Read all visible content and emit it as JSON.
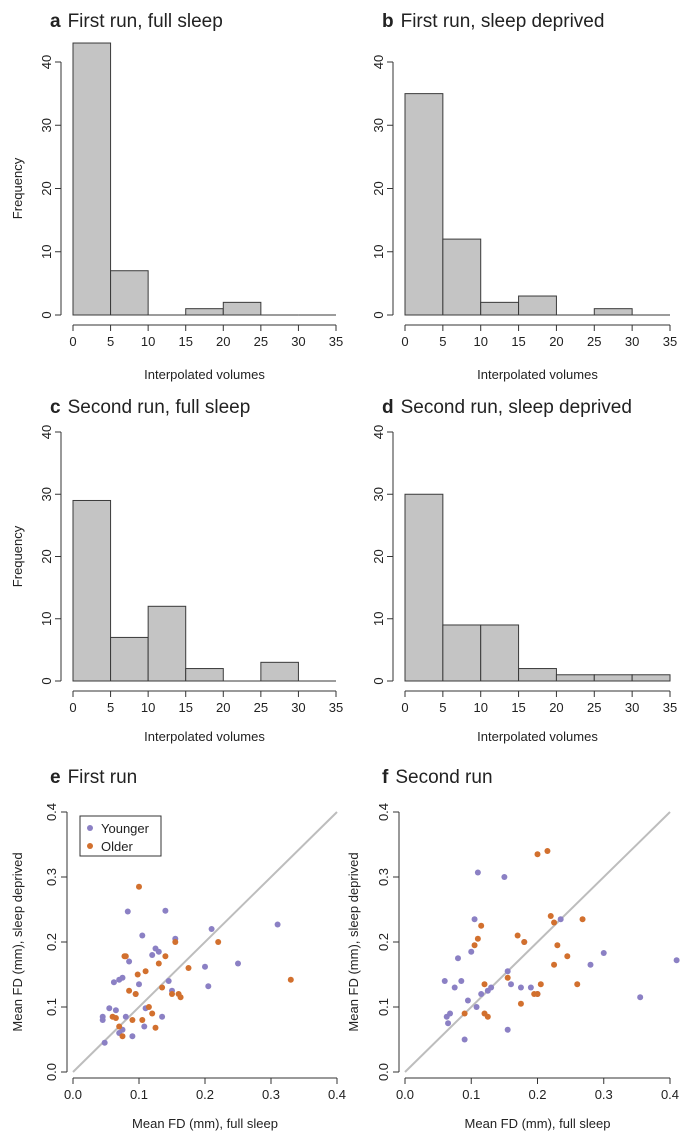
{
  "colors": {
    "bar_fill": "#c4c4c4",
    "bar_stroke": "#3a3a3a",
    "axis": "#333333",
    "identity_line": "#bdbdbd",
    "younger": "#8b80c4",
    "older": "#d2702e"
  },
  "chart_data": [
    {
      "type": "bar",
      "letter": "a",
      "title": "First run, full sleep",
      "xlabel": "Interpolated volumes",
      "ylabel": "Frequency",
      "bin_edges": [
        0,
        5,
        10,
        15,
        20,
        25,
        30,
        35
      ],
      "values": [
        43,
        7,
        0,
        1,
        2,
        0,
        0
      ],
      "xlim": [
        0,
        35
      ],
      "ylim": [
        0,
        40
      ],
      "xticks": [
        "0",
        "5",
        "10",
        "15",
        "20",
        "25",
        "30",
        "35"
      ],
      "yticks": [
        "0",
        "10",
        "20",
        "30",
        "40"
      ],
      "grid": false
    },
    {
      "type": "bar",
      "letter": "b",
      "title": "First run, sleep deprived",
      "xlabel": "Interpolated volumes",
      "ylabel": "",
      "bin_edges": [
        0,
        5,
        10,
        15,
        20,
        25,
        30,
        35
      ],
      "values": [
        35,
        12,
        2,
        3,
        0,
        1,
        0
      ],
      "xlim": [
        0,
        35
      ],
      "ylim": [
        0,
        40
      ],
      "xticks": [
        "0",
        "5",
        "10",
        "15",
        "20",
        "25",
        "30",
        "35"
      ],
      "yticks": [
        "0",
        "10",
        "20",
        "30",
        "40"
      ],
      "grid": false
    },
    {
      "type": "bar",
      "letter": "c",
      "title": "Second run, full sleep",
      "xlabel": "Interpolated volumes",
      "ylabel": "Frequency",
      "bin_edges": [
        0,
        5,
        10,
        15,
        20,
        25,
        30,
        35
      ],
      "values": [
        29,
        7,
        12,
        2,
        0,
        3,
        0
      ],
      "xlim": [
        0,
        35
      ],
      "ylim": [
        0,
        40
      ],
      "xticks": [
        "0",
        "5",
        "10",
        "15",
        "20",
        "25",
        "30",
        "35"
      ],
      "yticks": [
        "0",
        "10",
        "20",
        "30",
        "40"
      ],
      "grid": false
    },
    {
      "type": "bar",
      "letter": "d",
      "title": "Second run, sleep deprived",
      "xlabel": "Interpolated volumes",
      "ylabel": "",
      "bin_edges": [
        0,
        5,
        10,
        15,
        20,
        25,
        30,
        35
      ],
      "values": [
        30,
        9,
        9,
        2,
        1,
        1,
        1
      ],
      "xlim": [
        0,
        35
      ],
      "ylim": [
        0,
        40
      ],
      "xticks": [
        "0",
        "5",
        "10",
        "15",
        "20",
        "25",
        "30",
        "35"
      ],
      "yticks": [
        "0",
        "10",
        "20",
        "30",
        "40"
      ],
      "grid": false
    },
    {
      "type": "scatter",
      "letter": "e",
      "title": "First run",
      "xlabel": "Mean FD (mm), full sleep",
      "ylabel": "Mean FD (mm), sleep deprived",
      "xlim": [
        0,
        0.4
      ],
      "ylim": [
        0,
        0.4
      ],
      "xticks": [
        "0.0",
        "0.1",
        "0.2",
        "0.3",
        "0.4"
      ],
      "yticks": [
        "0.0",
        "0.1",
        "0.2",
        "0.3",
        "0.4"
      ],
      "identity_line": true,
      "legend": {
        "position": "top-left",
        "entries": [
          "Younger",
          "Older"
        ]
      },
      "grid": false,
      "series": [
        {
          "name": "Younger",
          "points": [
            [
              0.045,
              0.085
            ],
            [
              0.045,
              0.08
            ],
            [
              0.048,
              0.045
            ],
            [
              0.055,
              0.098
            ],
            [
              0.062,
              0.138
            ],
            [
              0.065,
              0.095
            ],
            [
              0.07,
              0.06
            ],
            [
              0.075,
              0.065
            ],
            [
              0.07,
              0.142
            ],
            [
              0.075,
              0.145
            ],
            [
              0.08,
              0.085
            ],
            [
              0.083,
              0.247
            ],
            [
              0.085,
              0.17
            ],
            [
              0.09,
              0.055
            ],
            [
              0.095,
              0.12
            ],
            [
              0.1,
              0.135
            ],
            [
              0.105,
              0.21
            ],
            [
              0.108,
              0.07
            ],
            [
              0.11,
              0.098
            ],
            [
              0.12,
              0.18
            ],
            [
              0.125,
              0.19
            ],
            [
              0.13,
              0.185
            ],
            [
              0.135,
              0.085
            ],
            [
              0.14,
              0.248
            ],
            [
              0.145,
              0.14
            ],
            [
              0.15,
              0.125
            ],
            [
              0.155,
              0.205
            ],
            [
              0.2,
              0.162
            ],
            [
              0.205,
              0.132
            ],
            [
              0.21,
              0.22
            ],
            [
              0.25,
              0.167
            ],
            [
              0.31,
              0.227
            ]
          ]
        },
        {
          "name": "Older",
          "points": [
            [
              0.06,
              0.085
            ],
            [
              0.065,
              0.083
            ],
            [
              0.07,
              0.07
            ],
            [
              0.075,
              0.055
            ],
            [
              0.078,
              0.178
            ],
            [
              0.08,
              0.178
            ],
            [
              0.085,
              0.125
            ],
            [
              0.09,
              0.08
            ],
            [
              0.095,
              0.12
            ],
            [
              0.098,
              0.15
            ],
            [
              0.1,
              0.285
            ],
            [
              0.105,
              0.08
            ],
            [
              0.11,
              0.155
            ],
            [
              0.115,
              0.1
            ],
            [
              0.12,
              0.09
            ],
            [
              0.125,
              0.068
            ],
            [
              0.13,
              0.167
            ],
            [
              0.135,
              0.13
            ],
            [
              0.14,
              0.178
            ],
            [
              0.15,
              0.12
            ],
            [
              0.155,
              0.2
            ],
            [
              0.16,
              0.12
            ],
            [
              0.163,
              0.115
            ],
            [
              0.175,
              0.16
            ],
            [
              0.22,
              0.2
            ],
            [
              0.33,
              0.142
            ]
          ]
        }
      ]
    },
    {
      "type": "scatter",
      "letter": "f",
      "title": "Second run",
      "xlabel": "Mean FD (mm), full sleep",
      "ylabel": "Mean FD (mm), sleep deprived",
      "xlim": [
        0,
        0.4
      ],
      "ylim": [
        0,
        0.4
      ],
      "xticks": [
        "0.0",
        "0.1",
        "0.2",
        "0.3",
        "0.4"
      ],
      "yticks": [
        "0.0",
        "0.1",
        "0.2",
        "0.3",
        "0.4"
      ],
      "identity_line": true,
      "grid": false,
      "series": [
        {
          "name": "Younger",
          "points": [
            [
              0.06,
              0.14
            ],
            [
              0.063,
              0.085
            ],
            [
              0.065,
              0.075
            ],
            [
              0.068,
              0.09
            ],
            [
              0.075,
              0.13
            ],
            [
              0.08,
              0.175
            ],
            [
              0.085,
              0.14
            ],
            [
              0.09,
              0.05
            ],
            [
              0.095,
              0.11
            ],
            [
              0.1,
              0.185
            ],
            [
              0.105,
              0.235
            ],
            [
              0.108,
              0.1
            ],
            [
              0.11,
              0.307
            ],
            [
              0.115,
              0.12
            ],
            [
              0.125,
              0.125
            ],
            [
              0.13,
              0.13
            ],
            [
              0.15,
              0.3
            ],
            [
              0.155,
              0.155
            ],
            [
              0.155,
              0.065
            ],
            [
              0.16,
              0.135
            ],
            [
              0.175,
              0.13
            ],
            [
              0.18,
              0.2
            ],
            [
              0.19,
              0.13
            ],
            [
              0.2,
              0.12
            ],
            [
              0.235,
              0.235
            ],
            [
              0.28,
              0.165
            ],
            [
              0.3,
              0.183
            ],
            [
              0.355,
              0.115
            ],
            [
              0.41,
              0.172
            ]
          ]
        },
        {
          "name": "Older",
          "points": [
            [
              0.09,
              0.09
            ],
            [
              0.105,
              0.195
            ],
            [
              0.11,
              0.205
            ],
            [
              0.115,
              0.225
            ],
            [
              0.12,
              0.09
            ],
            [
              0.12,
              0.135
            ],
            [
              0.125,
              0.085
            ],
            [
              0.155,
              0.145
            ],
            [
              0.17,
              0.21
            ],
            [
              0.175,
              0.105
            ],
            [
              0.18,
              0.2
            ],
            [
              0.195,
              0.12
            ],
            [
              0.2,
              0.335
            ],
            [
              0.205,
              0.135
            ],
            [
              0.2,
              0.12
            ],
            [
              0.215,
              0.34
            ],
            [
              0.22,
              0.24
            ],
            [
              0.225,
              0.165
            ],
            [
              0.225,
              0.23
            ],
            [
              0.23,
              0.195
            ],
            [
              0.245,
              0.178
            ],
            [
              0.26,
              0.135
            ],
            [
              0.268,
              0.235
            ]
          ]
        }
      ]
    }
  ]
}
